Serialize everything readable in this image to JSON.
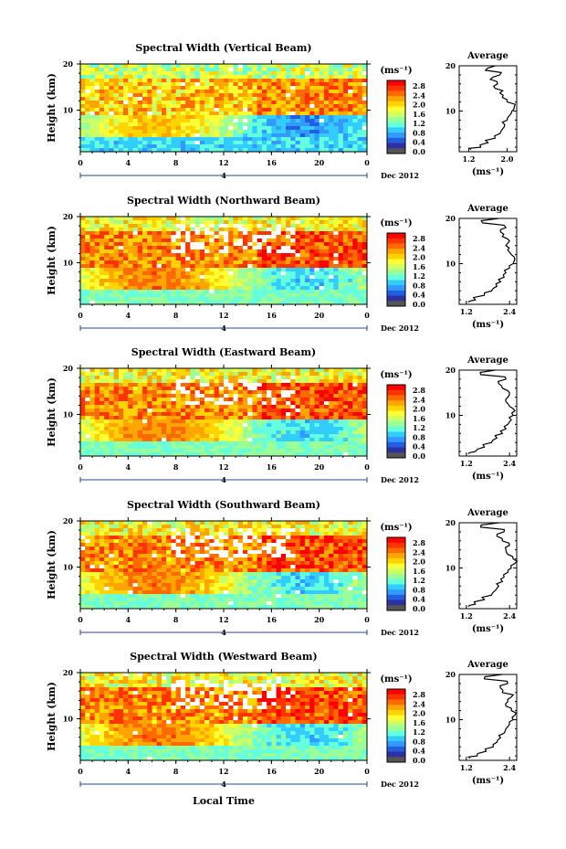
{
  "colorbar": {
    "unit": "(ms⁻¹)",
    "ticks": [
      "2.8",
      "2.4",
      "2.0",
      "1.6",
      "1.2",
      "0.8",
      "0.4",
      "0.0"
    ],
    "colors": [
      "#ffffff",
      "#ff0000",
      "#ff3300",
      "#ff6a00",
      "#ffa500",
      "#ffd400",
      "#ffff33",
      "#ccff66",
      "#99ff99",
      "#66ffdd",
      "#33ccff",
      "#3399ff",
      "#1f5fe0",
      "#2f2f9f",
      "#555555"
    ]
  },
  "x_axis": {
    "ticks": [
      "0",
      "4",
      "8",
      "12",
      "16",
      "20",
      "0"
    ],
    "date_label": "4",
    "date_suffix": "Dec 2012",
    "xlabel": "Local Time"
  },
  "y_axis": {
    "label": "Height (km)",
    "ticks": [
      "20",
      "10"
    ]
  },
  "average": {
    "title": "Average",
    "xlabel": "(ms⁻¹)"
  },
  "chart_data": [
    {
      "type": "heatmap",
      "title": "Spectral Width (Vertical Beam)",
      "xlabel": "Local Time",
      "ylabel": "Height (km)",
      "xlim": [
        0,
        24
      ],
      "ylim": [
        1,
        20
      ],
      "clim": [
        0.0,
        3.0
      ],
      "date": "4 Dec 2012",
      "avg_profile": {
        "xticks": [
          "1.2",
          "2.0"
        ],
        "xlim": [
          1.0,
          2.2
        ],
        "height": [
          1.5,
          2,
          3,
          4,
          5,
          6,
          7,
          8,
          9,
          10,
          11,
          12,
          13,
          14,
          15,
          16,
          17,
          18,
          19,
          20
        ],
        "values": [
          1.25,
          1.45,
          1.6,
          1.75,
          1.85,
          1.9,
          1.95,
          2.0,
          2.05,
          2.1,
          2.15,
          2.0,
          1.9,
          1.85,
          1.75,
          1.8,
          1.65,
          1.85,
          1.55,
          1.75
        ]
      }
    },
    {
      "type": "heatmap",
      "title": "Spectral Width (Northward Beam)",
      "xlabel": "Local Time",
      "ylabel": "Height (km)",
      "xlim": [
        0,
        24
      ],
      "ylim": [
        1,
        20
      ],
      "clim": [
        0.0,
        3.0
      ],
      "date": "4 Dec 2012",
      "avg_profile": {
        "xticks": [
          "1.2",
          "2.4"
        ],
        "xlim": [
          1.0,
          2.6
        ],
        "height": [
          1.5,
          2,
          3,
          4,
          5,
          6,
          7,
          8,
          9,
          10,
          11,
          12,
          13,
          14,
          15,
          16,
          17,
          18,
          19,
          20
        ],
        "values": [
          1.25,
          1.45,
          1.7,
          1.9,
          2.05,
          2.15,
          2.25,
          2.3,
          2.4,
          2.5,
          2.55,
          2.45,
          2.35,
          2.3,
          2.4,
          2.2,
          2.15,
          2.3,
          1.65,
          2.1
        ]
      }
    },
    {
      "type": "heatmap",
      "title": "Spectral Width (Eastward Beam)",
      "xlabel": "Local Time",
      "ylabel": "Height (km)",
      "xlim": [
        0,
        24
      ],
      "ylim": [
        1,
        20
      ],
      "clim": [
        0.0,
        3.0
      ],
      "date": "4 Dec 2012",
      "avg_profile": {
        "xticks": [
          "1.2",
          "2.4"
        ],
        "xlim": [
          1.0,
          2.6
        ],
        "height": [
          1.5,
          2,
          3,
          4,
          5,
          6,
          7,
          8,
          9,
          10,
          11,
          12,
          13,
          14,
          15,
          16,
          17,
          18,
          19,
          20
        ],
        "values": [
          1.25,
          1.45,
          1.7,
          1.9,
          2.05,
          2.2,
          2.3,
          2.35,
          2.45,
          2.5,
          2.55,
          2.4,
          2.3,
          2.35,
          2.4,
          2.2,
          2.1,
          2.3,
          1.6,
          2.0
        ]
      }
    },
    {
      "type": "heatmap",
      "title": "Spectral Width (Southward Beam)",
      "xlabel": "Local Time",
      "ylabel": "Height (km)",
      "xlim": [
        0,
        24
      ],
      "ylim": [
        1,
        20
      ],
      "clim": [
        0.0,
        3.0
      ],
      "date": "4 Dec 2012",
      "avg_profile": {
        "xticks": [
          "1.2",
          "2.4"
        ],
        "xlim": [
          1.0,
          2.6
        ],
        "height": [
          1.5,
          2,
          3,
          4,
          5,
          6,
          7,
          8,
          9,
          10,
          11,
          12,
          13,
          14,
          15,
          16,
          17,
          18,
          19,
          20
        ],
        "values": [
          1.25,
          1.45,
          1.7,
          1.9,
          2.0,
          2.1,
          2.2,
          2.25,
          2.35,
          2.45,
          2.55,
          2.5,
          2.35,
          2.3,
          2.4,
          2.2,
          2.05,
          2.25,
          1.6,
          2.1
        ]
      }
    },
    {
      "type": "heatmap",
      "title": "Spectral Width (Westward Beam)",
      "xlabel": "Local Time",
      "ylabel": "Height (km)",
      "xlim": [
        0,
        24
      ],
      "ylim": [
        1,
        20
      ],
      "clim": [
        0.0,
        3.0
      ],
      "date": "4 Dec 2012",
      "avg_profile": {
        "xticks": [
          "1.2",
          "2.4"
        ],
        "xlim": [
          1.0,
          2.6
        ],
        "height": [
          1.5,
          2,
          3,
          4,
          5,
          6,
          7,
          8,
          9,
          10,
          11,
          12,
          13,
          14,
          15,
          16,
          17,
          18,
          19,
          20
        ],
        "values": [
          1.3,
          1.5,
          1.75,
          1.95,
          2.05,
          2.15,
          2.25,
          2.3,
          2.4,
          2.5,
          2.55,
          2.45,
          2.3,
          2.35,
          2.45,
          2.2,
          2.15,
          2.35,
          1.7,
          2.2
        ]
      }
    }
  ]
}
